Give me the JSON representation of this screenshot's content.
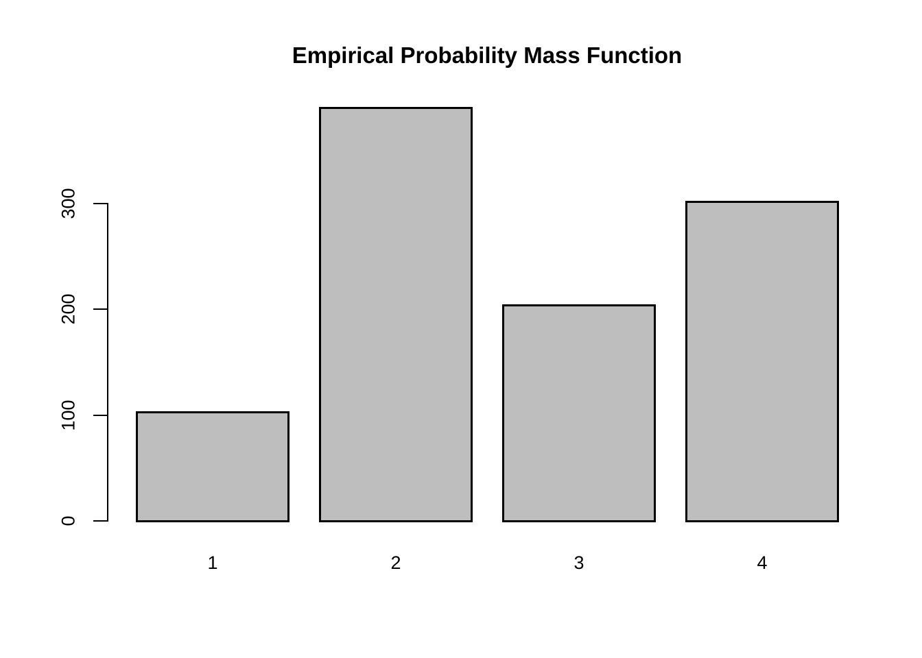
{
  "chart_data": {
    "type": "bar",
    "title": "Empirical Probability Mass Function",
    "categories": [
      "1",
      "2",
      "3",
      "4"
    ],
    "values": [
      103,
      391,
      204,
      302
    ],
    "xlabel": "",
    "ylabel": "",
    "yticks": [
      0,
      100,
      200,
      300
    ],
    "ylim": [
      0,
      391
    ],
    "grid": false,
    "legend_position": "none",
    "bar_fill_color": "#BEBEBE",
    "bar_border_color": "#000000",
    "axis_color": "#000000",
    "text_color": "#000000",
    "background_color": "#FFFFFF"
  }
}
